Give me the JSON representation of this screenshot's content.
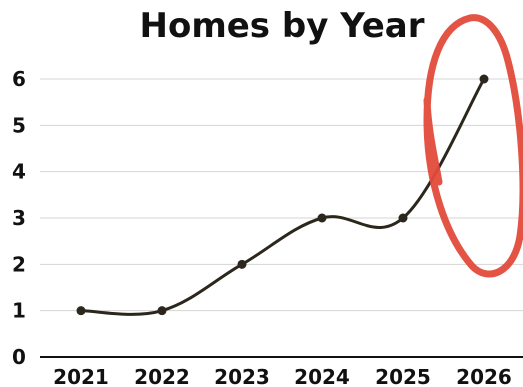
{
  "chart_data": {
    "type": "line",
    "title": "Homes by Year",
    "categories": [
      "2021",
      "2022",
      "2023",
      "2024",
      "2025",
      "2026"
    ],
    "values": [
      1,
      1,
      2,
      3,
      3,
      6
    ],
    "ylim": [
      0,
      6
    ],
    "yticks": [
      "0",
      "1",
      "2",
      "3",
      "4",
      "5",
      "6"
    ],
    "grid": true,
    "smooth": true,
    "annotation": {
      "type": "hand-drawn-circle",
      "target_category": "2026",
      "color": "#e24b3b"
    },
    "line_color": "#2c271c"
  }
}
